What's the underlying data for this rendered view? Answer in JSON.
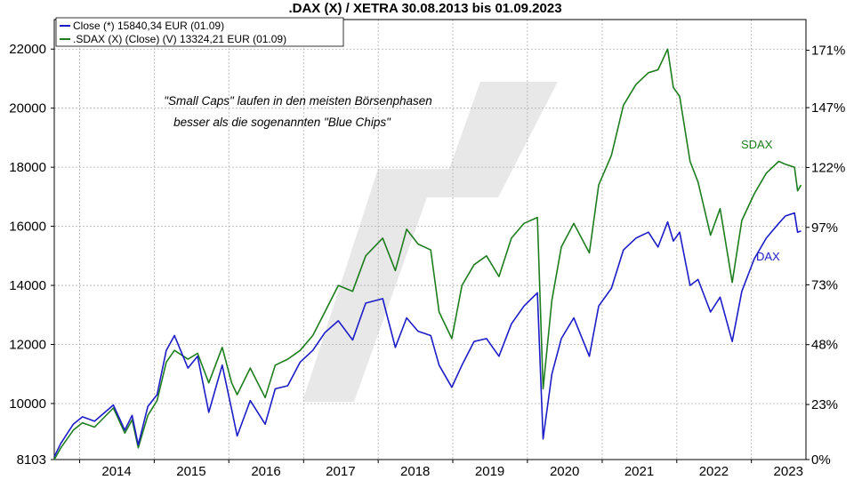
{
  "chart_data": {
    "type": "line",
    "title": ".DAX (X) / XETRA 30.08.2013 bis 01.09.2023",
    "x_ticks": [
      "2014",
      "2015",
      "2016",
      "2017",
      "2018",
      "2019",
      "2020",
      "2021",
      "2022",
      "2023"
    ],
    "y_left_ticks": [
      "8103",
      "10000",
      "12000",
      "14000",
      "16000",
      "18000",
      "20000",
      "22000"
    ],
    "y_right_ticks": [
      "0%",
      "23%",
      "48%",
      "73%",
      "97%",
      "122%",
      "147%",
      "171%"
    ],
    "ylim_left": [
      8103,
      23000
    ],
    "ylim_right_percent": [
      0,
      183.8
    ],
    "grid": true,
    "legend_position": "top-left",
    "legend": [
      {
        "text": "Close (*) 15840,34 EUR (01.09)",
        "color": "#1c1cc8"
      },
      {
        "text": ".SDAX (X) (Close) (V) 13324,21 EUR (01.09)",
        "color": "#1e7d1e"
      }
    ],
    "annotations": [
      "\"Small Caps\" laufen in den meisten Börsenphasen",
      "besser als die sogenannten \"Blue Chips\""
    ],
    "series": [
      {
        "name": "DAX",
        "color": "#1c1cc8",
        "x": [
          "2013-08-30",
          "2013-10-01",
          "2013-12-01",
          "2014-01-15",
          "2014-03-15",
          "2014-06-15",
          "2014-08-10",
          "2014-09-15",
          "2014-10-15",
          "2014-12-01",
          "2015-01-15",
          "2015-03-01",
          "2015-04-10",
          "2015-06-15",
          "2015-08-01",
          "2015-09-25",
          "2015-11-30",
          "2016-01-15",
          "2016-02-11",
          "2016-04-15",
          "2016-06-27",
          "2016-08-15",
          "2016-10-15",
          "2016-12-15",
          "2017-02-15",
          "2017-04-15",
          "2017-06-20",
          "2017-08-29",
          "2017-11-01",
          "2018-01-23",
          "2018-03-26",
          "2018-05-20",
          "2018-07-15",
          "2018-09-15",
          "2018-10-26",
          "2018-12-27",
          "2019-02-15",
          "2019-04-15",
          "2019-06-15",
          "2019-08-15",
          "2019-10-15",
          "2019-12-15",
          "2020-02-19",
          "2020-03-18",
          "2020-04-30",
          "2020-06-15",
          "2020-08-15",
          "2020-10-30",
          "2020-12-15",
          "2021-02-15",
          "2021-04-15",
          "2021-06-15",
          "2021-08-15",
          "2021-10-01",
          "2021-11-17",
          "2021-12-15",
          "2022-01-15",
          "2022-03-07",
          "2022-04-15",
          "2022-06-15",
          "2022-08-01",
          "2022-09-29",
          "2022-11-15",
          "2023-01-15",
          "2023-03-15",
          "2023-05-15",
          "2023-06-16",
          "2023-07-31",
          "2023-08-15",
          "2023-09-01"
        ],
        "values": [
          8200,
          8650,
          9300,
          9550,
          9400,
          9950,
          9100,
          9600,
          8600,
          9900,
          10300,
          11800,
          12300,
          11200,
          11600,
          9700,
          11300,
          9800,
          8900,
          10100,
          9300,
          10500,
          10600,
          11400,
          11800,
          12400,
          12800,
          12150,
          13400,
          13550,
          11900,
          12900,
          12450,
          12300,
          11300,
          10550,
          11300,
          12100,
          12200,
          11600,
          12700,
          13300,
          13750,
          8800,
          11000,
          12200,
          12900,
          11600,
          13300,
          13900,
          15200,
          15600,
          15800,
          15300,
          16150,
          15500,
          15800,
          14000,
          14200,
          13100,
          13600,
          12100,
          13800,
          14900,
          15600,
          16100,
          16350,
          16450,
          15800,
          15840
        ]
      },
      {
        "name": "SDAX",
        "color": "#1e7d1e",
        "x": [
          "2013-08-30",
          "2013-10-01",
          "2013-12-01",
          "2014-01-15",
          "2014-03-15",
          "2014-06-15",
          "2014-08-10",
          "2014-09-15",
          "2014-10-15",
          "2014-12-01",
          "2015-01-15",
          "2015-03-01",
          "2015-04-10",
          "2015-06-15",
          "2015-08-01",
          "2015-09-25",
          "2015-11-30",
          "2016-01-15",
          "2016-02-11",
          "2016-04-15",
          "2016-06-27",
          "2016-08-15",
          "2016-10-15",
          "2016-12-15",
          "2017-02-15",
          "2017-04-15",
          "2017-06-20",
          "2017-08-29",
          "2017-11-01",
          "2018-01-23",
          "2018-03-26",
          "2018-05-20",
          "2018-07-15",
          "2018-09-15",
          "2018-10-26",
          "2018-12-27",
          "2019-02-15",
          "2019-04-15",
          "2019-06-15",
          "2019-08-15",
          "2019-10-15",
          "2019-12-15",
          "2020-02-19",
          "2020-03-18",
          "2020-04-30",
          "2020-06-15",
          "2020-08-15",
          "2020-10-30",
          "2020-12-15",
          "2021-02-15",
          "2021-04-15",
          "2021-06-15",
          "2021-08-15",
          "2021-10-01",
          "2021-11-17",
          "2021-12-15",
          "2022-01-15",
          "2022-03-07",
          "2022-04-15",
          "2022-06-15",
          "2022-08-01",
          "2022-09-29",
          "2022-11-15",
          "2023-01-15",
          "2023-03-15",
          "2023-05-15",
          "2023-06-16",
          "2023-07-31",
          "2023-08-15",
          "2023-09-01"
        ],
        "values": [
          8103,
          8500,
          9100,
          9350,
          9200,
          9850,
          9000,
          9450,
          8500,
          9600,
          10100,
          11400,
          11800,
          11500,
          11700,
          10700,
          11900,
          10700,
          10300,
          11200,
          10200,
          11300,
          11500,
          11800,
          12300,
          13100,
          14000,
          13800,
          15000,
          15600,
          14500,
          15900,
          15400,
          15200,
          13100,
          12200,
          14000,
          14700,
          15000,
          14300,
          15600,
          16100,
          16300,
          10500,
          13500,
          15300,
          16100,
          15100,
          17400,
          18400,
          20100,
          20800,
          21200,
          21300,
          22000,
          20700,
          20400,
          18200,
          17500,
          15700,
          16600,
          14100,
          16200,
          17100,
          17800,
          18200,
          18100,
          18000,
          17200,
          17400
        ]
      }
    ],
    "series_labels": [
      "SDAX",
      "DAX"
    ]
  }
}
